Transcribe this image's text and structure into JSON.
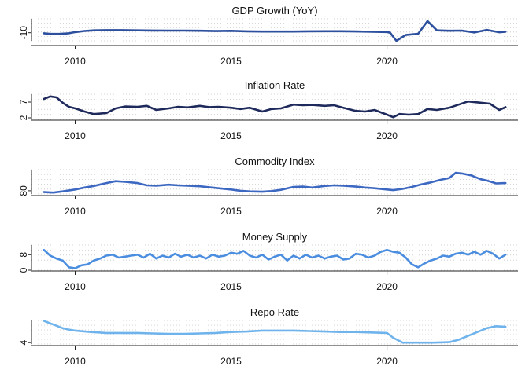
{
  "chart_data": [
    {
      "type": "line",
      "title": "GDP Growth (YoY)",
      "color": "#2c4f9e",
      "y_ticks": [
        -10
      ],
      "ylim": [
        -17,
        2
      ],
      "xlim": [
        2008.6,
        2024.2
      ],
      "x_ticks": [
        2010,
        2015,
        2020
      ],
      "grid": true,
      "x": [
        2009.0,
        2009.2,
        2009.5,
        2009.8,
        2010.0,
        2010.3,
        2010.6,
        2011.0,
        2011.5,
        2012.0,
        2012.5,
        2013.0,
        2013.5,
        2014.0,
        2014.5,
        2015.0,
        2015.5,
        2016.0,
        2016.5,
        2017.0,
        2017.5,
        2018.0,
        2018.5,
        2019.0,
        2019.5,
        2020.0,
        2020.1,
        2020.3,
        2020.6,
        2021.0,
        2021.3,
        2021.6,
        2022.0,
        2022.4,
        2022.8,
        2023.2,
        2023.6,
        2023.8
      ],
      "values": [
        -10.5,
        -11.0,
        -11.0,
        -10.5,
        -9.5,
        -8.5,
        -8.0,
        -7.8,
        -7.8,
        -8.0,
        -8.1,
        -8.2,
        -8.2,
        -8.3,
        -8.6,
        -8.4,
        -8.8,
        -9.0,
        -9.0,
        -9.0,
        -8.8,
        -8.7,
        -8.7,
        -8.9,
        -9.2,
        -9.4,
        -10.0,
        -17.0,
        -12.0,
        -10.9,
        0.0,
        -8.0,
        -8.3,
        -8.2,
        -9.8,
        -7.6,
        -9.6,
        -9.1
      ]
    },
    {
      "type": "line",
      "title": "Inflation Rate",
      "color": "#1f2a5c",
      "y_ticks": [
        2,
        7
      ],
      "ylim": [
        1.5,
        9.5
      ],
      "xlim": [
        2008.6,
        2024.2
      ],
      "x_ticks": [
        2010,
        2015,
        2020
      ],
      "grid": true,
      "x": [
        2009.0,
        2009.2,
        2009.4,
        2009.6,
        2009.8,
        2010.0,
        2010.3,
        2010.6,
        2011.0,
        2011.3,
        2011.6,
        2012.0,
        2012.3,
        2012.6,
        2013.0,
        2013.3,
        2013.6,
        2014.0,
        2014.3,
        2014.6,
        2015.0,
        2015.3,
        2015.6,
        2016.0,
        2016.3,
        2016.6,
        2017.0,
        2017.3,
        2017.6,
        2018.0,
        2018.3,
        2018.6,
        2019.0,
        2019.3,
        2019.6,
        2020.0,
        2020.2,
        2020.4,
        2020.7,
        2021.0,
        2021.3,
        2021.6,
        2022.0,
        2022.3,
        2022.6,
        2023.0,
        2023.3,
        2023.6,
        2023.8
      ],
      "values": [
        8.0,
        8.8,
        8.5,
        6.8,
        5.5,
        5.0,
        4.0,
        3.2,
        3.5,
        5.0,
        5.6,
        5.5,
        5.8,
        4.5,
        5.0,
        5.5,
        5.3,
        5.8,
        5.4,
        5.5,
        5.2,
        4.8,
        5.2,
        4.0,
        4.8,
        5.0,
        6.2,
        6.0,
        6.1,
        5.8,
        6.0,
        5.2,
        4.2,
        4.0,
        4.5,
        3.0,
        2.2,
        3.2,
        3.0,
        3.2,
        4.8,
        4.5,
        5.2,
        6.2,
        7.2,
        6.8,
        6.5,
        4.5,
        5.4
      ]
    },
    {
      "type": "line",
      "title": "Commodity Index",
      "color": "#3d68c2",
      "y_ticks": [
        80
      ],
      "ylim": [
        70,
        146
      ],
      "xlim": [
        2008.6,
        2024.2
      ],
      "x_ticks": [
        2010,
        2015,
        2020
      ],
      "grid": true,
      "x": [
        2009.0,
        2009.3,
        2009.6,
        2010.0,
        2010.3,
        2010.6,
        2011.0,
        2011.3,
        2011.6,
        2012.0,
        2012.3,
        2012.6,
        2013.0,
        2013.3,
        2013.6,
        2014.0,
        2014.3,
        2014.6,
        2015.0,
        2015.3,
        2015.6,
        2016.0,
        2016.3,
        2016.6,
        2017.0,
        2017.3,
        2017.6,
        2018.0,
        2018.3,
        2018.6,
        2019.0,
        2019.3,
        2019.6,
        2020.0,
        2020.2,
        2020.5,
        2020.8,
        2021.1,
        2021.4,
        2021.7,
        2022.0,
        2022.2,
        2022.4,
        2022.7,
        2023.0,
        2023.2,
        2023.5,
        2023.8
      ],
      "values": [
        76.0,
        74.5,
        78.0,
        84.0,
        90.0,
        95.0,
        104.0,
        110.0,
        108.0,
        104.0,
        97.0,
        96.0,
        99.0,
        97.0,
        96.0,
        94.0,
        91.0,
        88.0,
        84.0,
        80.0,
        78.0,
        77.0,
        79.0,
        83.0,
        92.0,
        93.0,
        90.0,
        95.0,
        97.0,
        96.0,
        93.0,
        90.0,
        88.0,
        84.0,
        82.0,
        86.0,
        92.0,
        100.0,
        106.0,
        114.0,
        120.0,
        136.0,
        134.0,
        128.0,
        116.0,
        112.0,
        103.0,
        104.0
      ]
    },
    {
      "type": "line",
      "title": "Money Supply",
      "color": "#4b8ee0",
      "y_ticks": [
        0,
        8
      ],
      "ylim": [
        0,
        13
      ],
      "xlim": [
        2008.6,
        2024.2
      ],
      "x_ticks": [
        2010,
        2015,
        2020
      ],
      "grid": true,
      "x": [
        2009.0,
        2009.2,
        2009.4,
        2009.6,
        2009.8,
        2010.0,
        2010.2,
        2010.4,
        2010.6,
        2010.8,
        2011.0,
        2011.2,
        2011.4,
        2011.6,
        2011.8,
        2012.0,
        2012.2,
        2012.4,
        2012.6,
        2012.8,
        2013.0,
        2013.2,
        2013.4,
        2013.6,
        2013.8,
        2014.0,
        2014.2,
        2014.4,
        2014.6,
        2014.8,
        2015.0,
        2015.2,
        2015.4,
        2015.6,
        2015.8,
        2016.0,
        2016.2,
        2016.4,
        2016.6,
        2016.8,
        2017.0,
        2017.2,
        2017.4,
        2017.6,
        2017.8,
        2018.0,
        2018.2,
        2018.4,
        2018.6,
        2018.8,
        2019.0,
        2019.2,
        2019.4,
        2019.6,
        2019.8,
        2020.0,
        2020.2,
        2020.4,
        2020.6,
        2020.8,
        2021.0,
        2021.2,
        2021.4,
        2021.6,
        2021.8,
        2022.0,
        2022.2,
        2022.4,
        2022.6,
        2022.8,
        2023.0,
        2023.2,
        2023.4,
        2023.6,
        2023.8
      ],
      "values": [
        10.5,
        7.5,
        6.0,
        5.0,
        1.5,
        1.0,
        2.5,
        3.0,
        5.0,
        6.0,
        7.5,
        8.0,
        6.5,
        7.0,
        7.5,
        8.0,
        6.5,
        8.5,
        6.0,
        7.5,
        6.5,
        8.5,
        7.0,
        8.0,
        6.5,
        7.5,
        6.0,
        8.0,
        7.0,
        7.5,
        9.0,
        8.5,
        10.0,
        7.5,
        6.5,
        8.0,
        5.5,
        7.0,
        8.0,
        5.0,
        7.5,
        6.0,
        8.0,
        6.5,
        7.5,
        6.0,
        7.0,
        7.5,
        5.5,
        6.0,
        8.5,
        8.0,
        6.5,
        7.5,
        9.5,
        10.5,
        9.5,
        9.0,
        6.5,
        3.0,
        1.5,
        3.5,
        5.0,
        6.0,
        7.5,
        7.0,
        8.5,
        9.0,
        8.0,
        9.5,
        8.0,
        10.0,
        8.5,
        6.0,
        8.0
      ]
    },
    {
      "type": "line",
      "title": "Repo Rate",
      "color": "#6fb3ec",
      "y_ticks": [
        4
      ],
      "ylim": [
        3.7,
        8.6
      ],
      "xlim": [
        2008.6,
        2024.2
      ],
      "x_ticks": [
        2010,
        2015,
        2020
      ],
      "grid": true,
      "x": [
        2009.0,
        2009.2,
        2009.4,
        2009.6,
        2009.8,
        2010.0,
        2010.5,
        2011.0,
        2011.5,
        2012.0,
        2012.5,
        2013.0,
        2013.5,
        2014.0,
        2014.5,
        2015.0,
        2015.5,
        2016.0,
        2016.5,
        2017.0,
        2017.5,
        2018.0,
        2018.5,
        2019.0,
        2019.5,
        2020.0,
        2020.2,
        2020.5,
        2021.0,
        2021.5,
        2022.0,
        2022.3,
        2022.6,
        2022.9,
        2023.2,
        2023.5,
        2023.8
      ],
      "values": [
        8.5,
        8.0,
        7.5,
        7.0,
        6.7,
        6.5,
        6.2,
        6.0,
        6.0,
        6.0,
        5.9,
        5.8,
        5.8,
        5.9,
        6.0,
        6.2,
        6.3,
        6.5,
        6.5,
        6.5,
        6.4,
        6.3,
        6.2,
        6.2,
        6.1,
        6.0,
        5.0,
        4.0,
        4.0,
        4.0,
        4.1,
        4.6,
        5.4,
        6.2,
        7.0,
        7.4,
        7.3
      ]
    }
  ]
}
